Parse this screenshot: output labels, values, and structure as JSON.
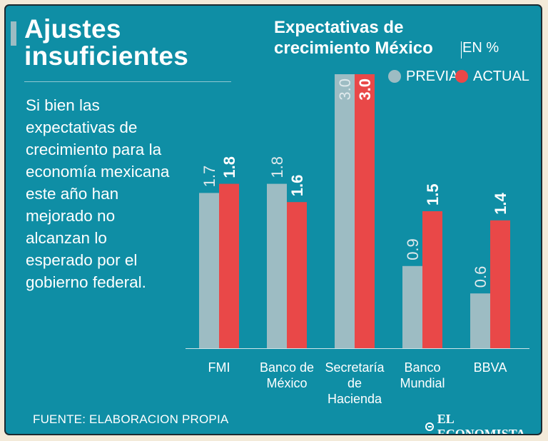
{
  "headline": {
    "line1": "Ajustes",
    "line2": "insuficientes"
  },
  "description": "Si bien las expectativas de crecimiento para la economía mexicana este año han mejorado no alcanzan lo esperado por el gobierno federal.",
  "chart_title": {
    "line1": "Expectativas de",
    "line2": "crecimiento México",
    "units": "EN %"
  },
  "legend": {
    "previous": "PREVIA",
    "actual": "ACTUAL"
  },
  "colors": {
    "background": "#0f8ea5",
    "previous": "#9dbcc3",
    "actual": "#e94848",
    "paper": "#f3ead9"
  },
  "source": "FUENTE: ELABORACION PROPIA",
  "brand": "EL ECONOMISTA",
  "chart_data": {
    "type": "bar",
    "title": "Expectativas de crecimiento México",
    "ylabel": "EN %",
    "categories": [
      [
        "FMI"
      ],
      [
        "Banco de",
        "México"
      ],
      [
        "Secretaría",
        "de",
        "Hacienda"
      ],
      [
        "Banco",
        "Mundial"
      ],
      [
        "BBVA"
      ]
    ],
    "series": [
      {
        "name": "PREVIA",
        "values": [
          1.7,
          1.8,
          3.0,
          0.9,
          0.6
        ],
        "labels": [
          "1.7",
          "1.8",
          "3.0",
          "0.9",
          "0.6"
        ]
      },
      {
        "name": "ACTUAL",
        "values": [
          1.8,
          1.6,
          3.0,
          1.5,
          1.4
        ],
        "labels": [
          "1.8",
          "1.6",
          "3.0",
          "1.5",
          "1.4"
        ]
      }
    ],
    "ylim": [
      0,
      3.0
    ],
    "legend_position": "top-right",
    "grid": false
  }
}
